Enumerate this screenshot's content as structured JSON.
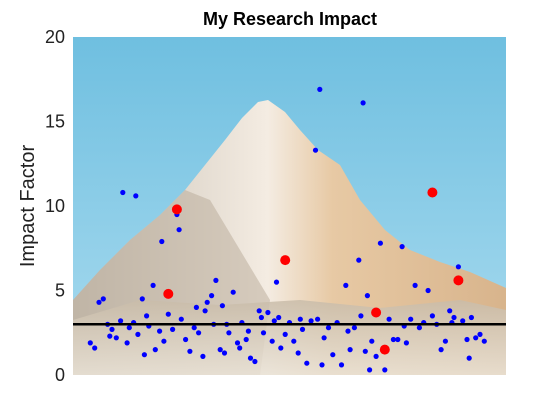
{
  "chart_data": {
    "type": "scatter",
    "title": "My Research Impact",
    "xlabel": "",
    "ylabel": "Impact Factor",
    "xlim": [
      0,
      1
    ],
    "ylim": [
      0,
      20
    ],
    "yticks": [
      0,
      5,
      10,
      15,
      20
    ],
    "xticks": [],
    "grid": false,
    "background": "mountain-peak-photo",
    "reference_line": {
      "y": 3.0,
      "color": "#000000"
    },
    "colors": {
      "series_blue": "#0000ff",
      "series_red": "#ff0000",
      "sky": "#7cc4e0"
    },
    "series": [
      {
        "color": "#0000ff",
        "points": [
          [
            0.04,
            1.9
          ],
          [
            0.05,
            1.6
          ],
          [
            0.06,
            4.3
          ],
          [
            0.07,
            4.5
          ],
          [
            0.08,
            3.0
          ],
          [
            0.085,
            2.3
          ],
          [
            0.09,
            2.7
          ],
          [
            0.1,
            2.2
          ],
          [
            0.11,
            3.2
          ],
          [
            0.115,
            10.8
          ],
          [
            0.125,
            1.9
          ],
          [
            0.13,
            2.8
          ],
          [
            0.14,
            3.1
          ],
          [
            0.145,
            10.6
          ],
          [
            0.15,
            2.4
          ],
          [
            0.16,
            4.5
          ],
          [
            0.165,
            1.2
          ],
          [
            0.17,
            3.5
          ],
          [
            0.175,
            2.9
          ],
          [
            0.185,
            5.3
          ],
          [
            0.19,
            1.5
          ],
          [
            0.2,
            2.6
          ],
          [
            0.205,
            7.9
          ],
          [
            0.21,
            2.0
          ],
          [
            0.22,
            3.6
          ],
          [
            0.23,
            2.7
          ],
          [
            0.24,
            9.5
          ],
          [
            0.245,
            8.6
          ],
          [
            0.25,
            3.3
          ],
          [
            0.26,
            2.1
          ],
          [
            0.27,
            1.4
          ],
          [
            0.28,
            2.8
          ],
          [
            0.285,
            4.0
          ],
          [
            0.29,
            2.5
          ],
          [
            0.3,
            1.1
          ],
          [
            0.305,
            3.8
          ],
          [
            0.31,
            4.3
          ],
          [
            0.32,
            4.7
          ],
          [
            0.325,
            3.0
          ],
          [
            0.33,
            5.6
          ],
          [
            0.34,
            1.5
          ],
          [
            0.345,
            4.1
          ],
          [
            0.35,
            1.3
          ],
          [
            0.355,
            3.0
          ],
          [
            0.36,
            2.5
          ],
          [
            0.37,
            4.9
          ],
          [
            0.38,
            1.9
          ],
          [
            0.385,
            1.6
          ],
          [
            0.39,
            3.1
          ],
          [
            0.4,
            2.1
          ],
          [
            0.405,
            2.6
          ],
          [
            0.41,
            1.0
          ],
          [
            0.42,
            0.8
          ],
          [
            0.43,
            3.8
          ],
          [
            0.435,
            3.4
          ],
          [
            0.44,
            2.5
          ],
          [
            0.45,
            3.7
          ],
          [
            0.46,
            2.0
          ],
          [
            0.465,
            3.2
          ],
          [
            0.47,
            5.5
          ],
          [
            0.475,
            3.4
          ],
          [
            0.48,
            1.6
          ],
          [
            0.49,
            2.4
          ],
          [
            0.5,
            3.1
          ],
          [
            0.51,
            2.0
          ],
          [
            0.52,
            1.3
          ],
          [
            0.525,
            3.3
          ],
          [
            0.53,
            2.7
          ],
          [
            0.54,
            0.7
          ],
          [
            0.55,
            3.2
          ],
          [
            0.56,
            13.3
          ],
          [
            0.565,
            3.3
          ],
          [
            0.57,
            16.9
          ],
          [
            0.575,
            0.6
          ],
          [
            0.58,
            2.2
          ],
          [
            0.59,
            2.8
          ],
          [
            0.6,
            1.2
          ],
          [
            0.61,
            3.1
          ],
          [
            0.62,
            0.6
          ],
          [
            0.63,
            5.3
          ],
          [
            0.635,
            2.6
          ],
          [
            0.64,
            1.5
          ],
          [
            0.65,
            2.8
          ],
          [
            0.66,
            6.8
          ],
          [
            0.665,
            3.5
          ],
          [
            0.67,
            16.1
          ],
          [
            0.675,
            1.4
          ],
          [
            0.68,
            4.7
          ],
          [
            0.685,
            0.3
          ],
          [
            0.69,
            2.0
          ],
          [
            0.7,
            1.1
          ],
          [
            0.71,
            7.8
          ],
          [
            0.72,
            0.3
          ],
          [
            0.73,
            3.3
          ],
          [
            0.74,
            2.1
          ],
          [
            0.75,
            2.1
          ],
          [
            0.76,
            7.6
          ],
          [
            0.765,
            2.9
          ],
          [
            0.77,
            1.9
          ],
          [
            0.78,
            3.3
          ],
          [
            0.79,
            5.3
          ],
          [
            0.8,
            2.8
          ],
          [
            0.81,
            3.1
          ],
          [
            0.82,
            5.0
          ],
          [
            0.83,
            3.5
          ],
          [
            0.84,
            3.0
          ],
          [
            0.85,
            1.5
          ],
          [
            0.86,
            2.0
          ],
          [
            0.87,
            3.8
          ],
          [
            0.875,
            3.1
          ],
          [
            0.88,
            3.4
          ],
          [
            0.89,
            6.4
          ],
          [
            0.9,
            3.2
          ],
          [
            0.91,
            2.1
          ],
          [
            0.915,
            1.0
          ],
          [
            0.92,
            3.4
          ],
          [
            0.93,
            2.2
          ],
          [
            0.94,
            2.4
          ],
          [
            0.95,
            2.0
          ]
        ]
      },
      {
        "color": "#ff0000",
        "points": [
          [
            0.22,
            4.8
          ],
          [
            0.24,
            9.8
          ],
          [
            0.49,
            6.8
          ],
          [
            0.7,
            3.7
          ],
          [
            0.72,
            1.5
          ],
          [
            0.83,
            10.8
          ],
          [
            0.89,
            5.6
          ]
        ]
      }
    ]
  }
}
